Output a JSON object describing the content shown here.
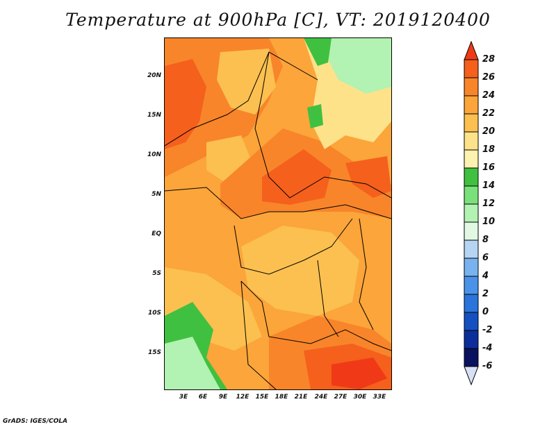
{
  "title": "Temperature at 900hPa [C], VT: 2019120400",
  "footer": "GrADS: IGES/COLA",
  "map": {
    "lat_labels": [
      "20N",
      "15N",
      "10N",
      "5N",
      "EQ",
      "5S",
      "10S",
      "15S"
    ],
    "lon_labels": [
      "3E",
      "6E",
      "9E",
      "12E",
      "15E",
      "18E",
      "21E",
      "24E",
      "27E",
      "30E",
      "33E"
    ]
  },
  "colorbar": {
    "labels": [
      "28",
      "26",
      "24",
      "22",
      "20",
      "18",
      "16",
      "14",
      "12",
      "10",
      "8",
      "6",
      "4",
      "2",
      "0",
      "-2",
      "-4",
      "-6"
    ],
    "colors": [
      "#f03a17",
      "#f5601c",
      "#f8852a",
      "#fba53a",
      "#fbc050",
      "#fde28a",
      "#fdf2b0",
      "#40c040",
      "#7ae07a",
      "#b2f2b2",
      "#e2f8e2",
      "#b5d5f2",
      "#78b3ef",
      "#4a93e8",
      "#2a74db",
      "#1450c0",
      "#0c2e9a",
      "#08125e",
      "#d8e0f4"
    ]
  }
}
